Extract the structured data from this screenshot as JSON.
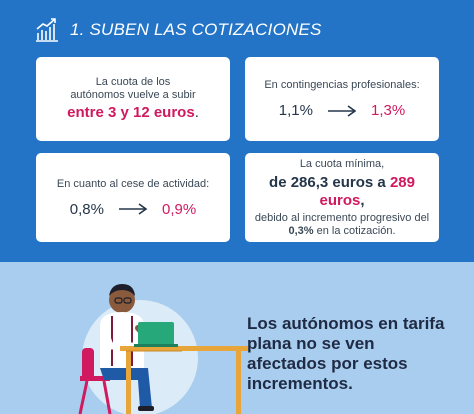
{
  "header": {
    "title": "1. SUBEN LAS COTIZACIONES",
    "icon": "growth-chart-icon"
  },
  "cards": {
    "quota": {
      "line1": "La cuota de los",
      "line2": "autónomos vuelve a subir",
      "range": "entre 3 y 12 euros",
      "period": "."
    },
    "professional": {
      "label": "En contingencias profesionales:",
      "from": "1,1%",
      "to": "1,3%"
    },
    "cessation": {
      "label": "En cuanto al cese de actividad:",
      "from": "0,8%",
      "to": "0,9%"
    },
    "minimum": {
      "line1": "La cuota mínima,",
      "from_prefix": "de 286,3 euros a ",
      "to": "289 euros",
      "to_suffix": ",",
      "line3": "debido al incremento progresivo del",
      "pct": "0,3%",
      "line4_suffix": " en la cotización."
    }
  },
  "footer": {
    "claim": "Los autónomos en tarifa plana no se ven afectados por estos incrementos."
  },
  "colors": {
    "blue": "#2374c7",
    "light_blue": "#a9cdee",
    "accent": "#d0195e",
    "text_dark": "#25364a"
  }
}
